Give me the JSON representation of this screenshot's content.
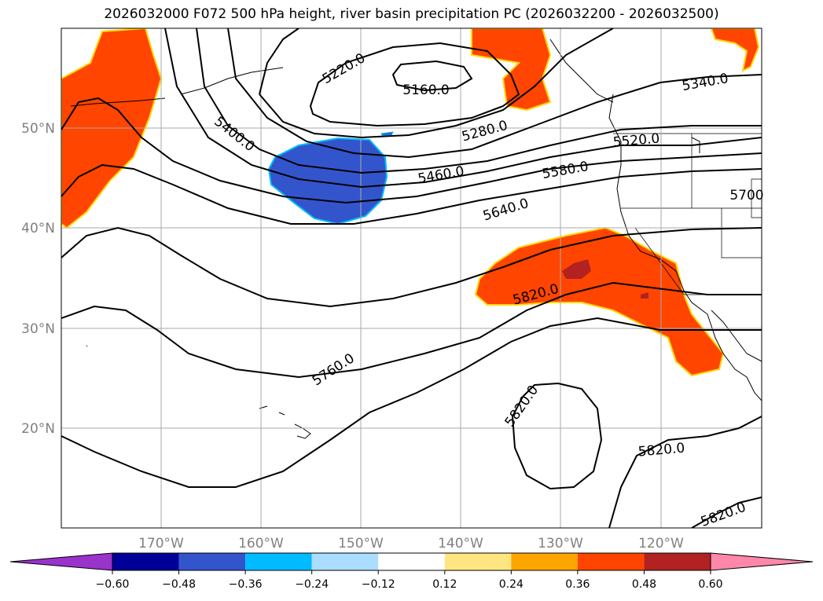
{
  "title": "2026032000 F072 500 hPa height, river basin precipitation PC (2026032200 - 2026032500)",
  "lat_labels": [
    "50°N",
    "40°N",
    "30°N",
    "20°N"
  ],
  "lon_labels": [
    "170°W",
    "160°W",
    "150°W",
    "140°W",
    "130°W",
    "120°W"
  ],
  "contour_labels": [
    "5220.0",
    "5160.0",
    "5340.0",
    "5400.0",
    "5280.0",
    "5460.0",
    "5580.0",
    "5640.0",
    "5700",
    "5820.0",
    "5760.0",
    "5820.0",
    "5820.0",
    "5820.0",
    "5520.0"
  ],
  "colorbar": {
    "ticks": [
      "−0.60",
      "−0.48",
      "−0.36",
      "−0.24",
      "−0.12",
      "0.12",
      "0.24",
      "0.36",
      "0.48",
      "0.60"
    ],
    "colors": [
      "#9933cc",
      "#000099",
      "#3355cc",
      "#00bbff",
      "#aaddff",
      "#ffffff",
      "#ffe680",
      "#ffa500",
      "#ff4500",
      "#b22222",
      "#ff88aa"
    ]
  },
  "colors": {
    "positive_anomaly": "#ff4500",
    "negative_anomaly": "#3355cc",
    "strong_positive": "#b22222",
    "contour": "#000000",
    "grid": "#aaaaaa"
  }
}
